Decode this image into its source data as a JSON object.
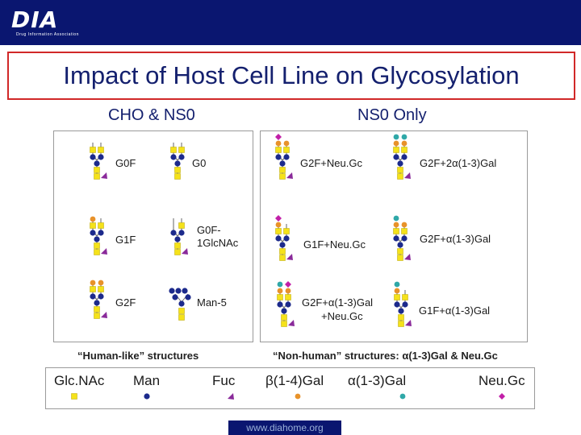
{
  "header": {
    "logo_text": "DIA",
    "logo_subtitle": "Drug Information Association"
  },
  "title": "Impact of Host Cell Line on Glycosylation",
  "columns": {
    "left_heading": "CHO & NS0",
    "right_heading": "NS0 Only"
  },
  "structures_left": [
    {
      "label": "G0F"
    },
    {
      "label": "G0"
    },
    {
      "label": "G1F"
    },
    {
      "label": "G0F-\n1GlcNAc",
      "line1": "G0F-",
      "line2": "1GlcNAc"
    },
    {
      "label": "G2F"
    },
    {
      "label": "Man-5"
    }
  ],
  "structures_right": [
    {
      "label": "G2F+Neu.Gc"
    },
    {
      "label": "G2F+2α(1-3)Gal"
    },
    {
      "label": "G1F+Neu.Gc"
    },
    {
      "label": "G2F+α(1-3)Gal"
    },
    {
      "label": "G2F+α(1-3)Gal +Neu.Gc",
      "line1": "G2F+α(1-3)Gal",
      "line2": "+Neu.Gc"
    },
    {
      "label": "G1F+α(1-3)Gal"
    }
  ],
  "captions": {
    "left": "“Human-like” structures",
    "right": "“Non-human” structures: α(1-3)Gal & Neu.Gc"
  },
  "legend": [
    {
      "label": "Glc.NAc",
      "symbol": "yellow-square"
    },
    {
      "label": "Man",
      "symbol": "blue-circle"
    },
    {
      "label": "Fuc",
      "symbol": "purple-triangle"
    },
    {
      "label": "β(1-4)Gal",
      "symbol": "orange-circle"
    },
    {
      "label": "α(1-3)Gal",
      "symbol": "teal-circle"
    },
    {
      "label": "Neu.Gc",
      "symbol": "magenta-diamond"
    }
  ],
  "colors": {
    "glcnac": "#f5e21a",
    "man": "#1c2a8c",
    "fuc": "#8a2a9a",
    "gal_b14": "#e8922a",
    "gal_a13": "#2fa8a8",
    "neugc": "#c21fa8",
    "header_navy": "#0a1670",
    "title_border": "#d12828"
  },
  "footer": "www.diahome.org"
}
